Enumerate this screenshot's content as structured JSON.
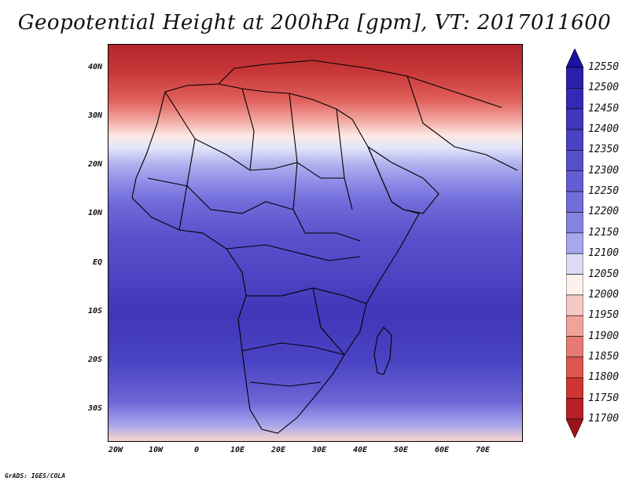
{
  "title": "Geopotential Height at 200hPa [gpm], VT: 2017011600",
  "credit": "GrADS: IGES/COLA",
  "axes": {
    "lat_labels": [
      "40N",
      "30N",
      "20N",
      "10N",
      "EQ",
      "10S",
      "20S",
      "30S"
    ],
    "lon_labels": [
      "20W",
      "10W",
      "0",
      "10E",
      "20E",
      "30E",
      "40E",
      "50E",
      "60E",
      "70E"
    ]
  },
  "colorbar": {
    "labels": [
      "12550",
      "12500",
      "12450",
      "12400",
      "12350",
      "12300",
      "12250",
      "12200",
      "12150",
      "12100",
      "12050",
      "12000",
      "11950",
      "11900",
      "11850",
      "11800",
      "11750",
      "11700"
    ],
    "colors": [
      "#1d12a0",
      "#2a20aa",
      "#3529b3",
      "#4036bb",
      "#4a43c3",
      "#5650cb",
      "#635ed3",
      "#716dda",
      "#8583e2",
      "#a8a6ed",
      "#dcdcf7",
      "#fdf1ef",
      "#f7c9c4",
      "#f0a39b",
      "#e77a72",
      "#dd5550",
      "#cf3533",
      "#b72126",
      "#9b151a"
    ]
  }
}
